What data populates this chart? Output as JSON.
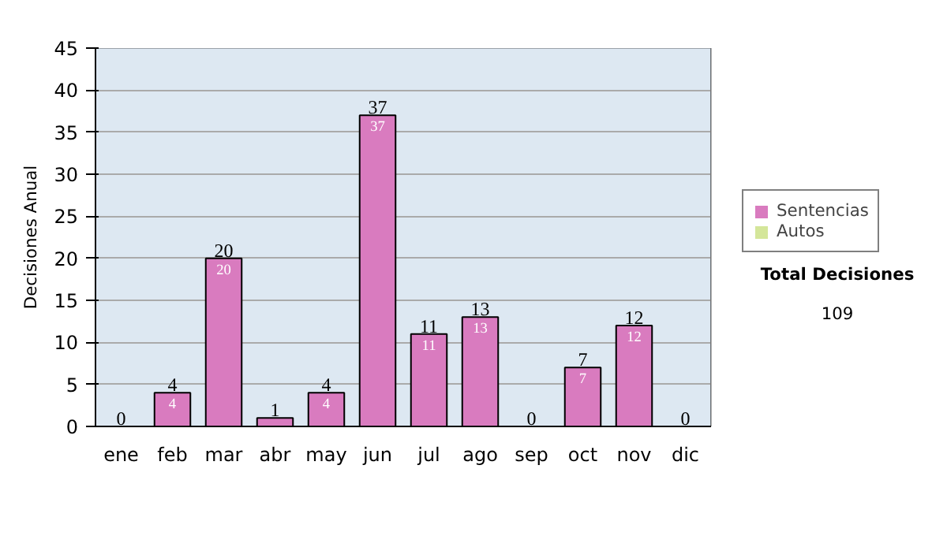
{
  "chart_data": {
    "type": "bar",
    "stacked": true,
    "ylabel": "Decisiones Anual",
    "categories": [
      "ene",
      "feb",
      "mar",
      "abr",
      "may",
      "jun",
      "jul",
      "ago",
      "sep",
      "oct",
      "nov",
      "dic"
    ],
    "series": [
      {
        "name": "Sentencias",
        "color": "#d97bbf",
        "values": [
          0,
          4,
          20,
          1,
          4,
          37,
          11,
          13,
          0,
          7,
          12,
          0
        ],
        "value_labels": [
          null,
          "4",
          "20",
          null,
          "4",
          "37",
          "11",
          "13",
          null,
          "7",
          "12",
          null
        ]
      },
      {
        "name": "Autos",
        "color": "#d4e69a",
        "values": [
          0,
          0,
          0,
          0,
          0,
          0,
          0,
          0,
          0,
          0,
          0,
          0
        ]
      }
    ],
    "totals": [
      "0",
      "4",
      "20",
      "1",
      "4",
      "37",
      "11",
      "13",
      "0",
      "7",
      "12",
      "0"
    ],
    "ylim": [
      0,
      45
    ],
    "yticks": [
      0,
      5,
      10,
      15,
      20,
      25,
      30,
      35,
      40,
      45
    ],
    "grid": "y",
    "legend": "right",
    "annotations": [
      "Total Decisiones",
      "109"
    ]
  }
}
